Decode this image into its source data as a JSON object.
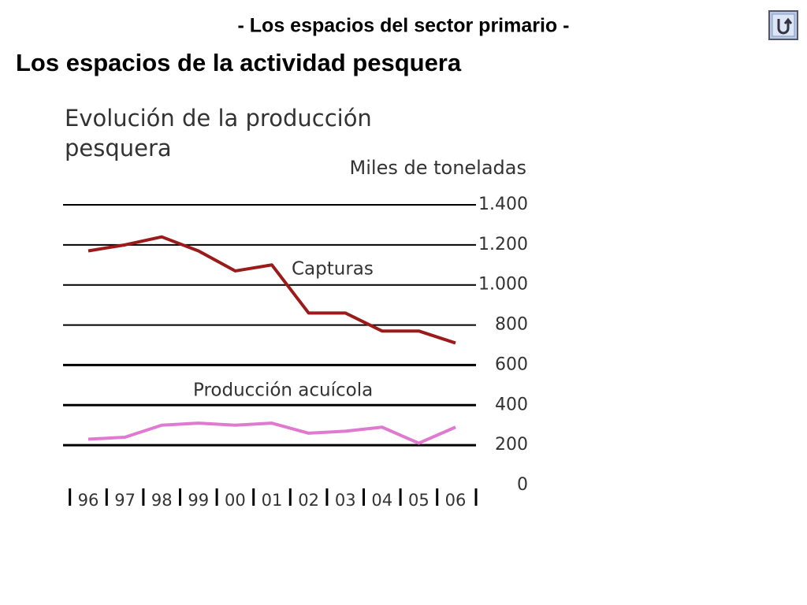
{
  "header": {
    "subtitle": "- Los espacios del sector primario -",
    "title": "Los espacios de la actividad pesquera"
  },
  "chart_data": {
    "type": "line",
    "title": "Evolución de la producción pesquera",
    "y_label": "Miles de toneladas",
    "categories": [
      "96",
      "97",
      "98",
      "99",
      "00",
      "01",
      "02",
      "03",
      "04",
      "05",
      "06"
    ],
    "series": [
      {
        "name": "Capturas",
        "color": "#9b1a1a",
        "values": [
          1170,
          1200,
          1240,
          1170,
          1070,
          1100,
          860,
          860,
          770,
          770,
          710
        ]
      },
      {
        "name": "Producción acuícola",
        "color": "#e07ad0",
        "values": [
          230,
          240,
          300,
          310,
          300,
          310,
          260,
          270,
          290,
          210,
          290
        ]
      }
    ],
    "ylim": [
      0,
      1400
    ],
    "yticks": [
      0,
      200,
      400,
      600,
      800,
      {
        "value": 1000,
        "label": "1.000"
      },
      {
        "value": 1200,
        "label": "1.200"
      },
      {
        "value": 1400,
        "label": "1.400"
      }
    ],
    "grid": true
  }
}
